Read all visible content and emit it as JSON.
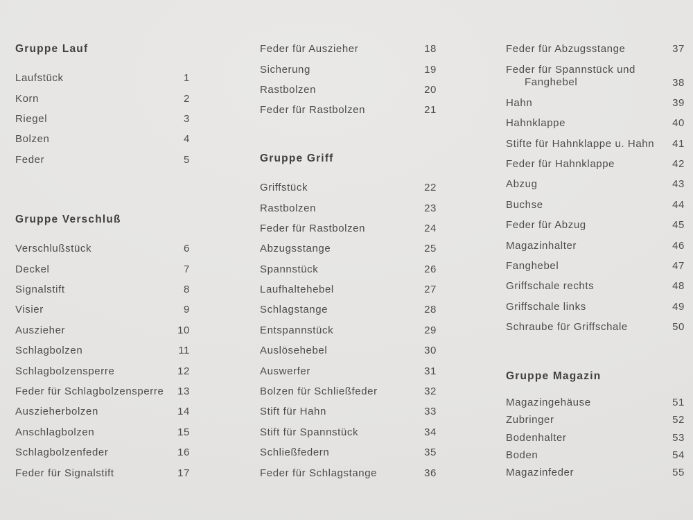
{
  "page": {
    "background_color": "#e5e4e2",
    "text_color": "#4d4c49",
    "heading_color": "#403f3c"
  },
  "columns": [
    {
      "blocks": [
        {
          "type": "heading",
          "text": "Gruppe Lauf"
        },
        {
          "type": "items",
          "items": [
            {
              "label": "Laufstück",
              "number": "1"
            },
            {
              "label": "Korn",
              "number": "2"
            },
            {
              "label": "Riegel",
              "number": "3"
            },
            {
              "label": "Bolzen",
              "number": "4"
            },
            {
              "label": "Feder",
              "number": "5"
            }
          ]
        },
        {
          "type": "heading",
          "text": "Gruppe Verschluß"
        },
        {
          "type": "items",
          "items": [
            {
              "label": "Verschlußstück",
              "number": "6"
            },
            {
              "label": "Deckel",
              "number": "7"
            },
            {
              "label": "Signalstift",
              "number": "8"
            },
            {
              "label": "Visier",
              "number": "9"
            },
            {
              "label": "Auszieher",
              "number": "10"
            },
            {
              "label": "Schlagbolzen",
              "number": "11"
            },
            {
              "label": "Schlagbolzensperre",
              "number": "12"
            },
            {
              "label": "Feder für Schlagbolzensperre",
              "number": "13"
            },
            {
              "label": "Auszieherbolzen",
              "number": "14"
            },
            {
              "label": "Anschlagbolzen",
              "number": "15"
            },
            {
              "label": "Schlagbolzenfeder",
              "number": "16"
            },
            {
              "label": "Feder für Signalstift",
              "number": "17"
            }
          ]
        }
      ]
    },
    {
      "blocks": [
        {
          "type": "items",
          "items": [
            {
              "label": "Feder für Auszieher",
              "number": "18"
            },
            {
              "label": "Sicherung",
              "number": "19"
            },
            {
              "label": "Rastbolzen",
              "number": "20"
            },
            {
              "label": "Feder für Rastbolzen",
              "number": "21"
            }
          ]
        },
        {
          "type": "heading",
          "text": "Gruppe Griff"
        },
        {
          "type": "items",
          "items": [
            {
              "label": "Griffstück",
              "number": "22"
            },
            {
              "label": "Rastbolzen",
              "number": "23"
            },
            {
              "label": "Feder für Rastbolzen",
              "number": "24"
            },
            {
              "label": "Abzugsstange",
              "number": "25"
            },
            {
              "label": "Spannstück",
              "number": "26"
            },
            {
              "label": "Laufhaltehebel",
              "number": "27"
            },
            {
              "label": "Schlagstange",
              "number": "28"
            },
            {
              "label": "Entspannstück",
              "number": "29"
            },
            {
              "label": "Auslösehebel",
              "number": "30"
            },
            {
              "label": "Auswerfer",
              "number": "31"
            },
            {
              "label": "Bolzen für Schließfeder",
              "number": "32"
            },
            {
              "label": "Stift für Hahn",
              "number": "33"
            },
            {
              "label": "Stift für Spannstück",
              "number": "34"
            },
            {
              "label": "Schließfedern",
              "number": "35"
            },
            {
              "label": "Feder für Schlagstange",
              "number": "36"
            }
          ]
        }
      ]
    },
    {
      "blocks": [
        {
          "type": "items",
          "items": [
            {
              "label": "Feder für Abzugsstange",
              "number": "37"
            },
            {
              "label": "Feder für Spannstück und",
              "label2": "Fanghebel",
              "number": "38"
            },
            {
              "label": "Hahn",
              "number": "39"
            },
            {
              "label": "Hahnklappe",
              "number": "40"
            },
            {
              "label": "Stifte für Hahnklappe u. Hahn",
              "number": "41"
            },
            {
              "label": "Feder für Hahnklappe",
              "number": "42"
            },
            {
              "label": "Abzug",
              "number": "43"
            },
            {
              "label": "Buchse",
              "number": "44"
            },
            {
              "label": "Feder für Abzug",
              "number": "45"
            },
            {
              "label": "Magazinhalter",
              "number": "46"
            },
            {
              "label": "Fanghebel",
              "number": "47"
            },
            {
              "label": "Griffschale rechts",
              "number": "48"
            },
            {
              "label": "Griffschale links",
              "number": "49"
            },
            {
              "label": "Schraube für Griffschale",
              "number": "50"
            }
          ]
        },
        {
          "type": "heading",
          "text": "Gruppe Magazin"
        },
        {
          "type": "items",
          "compact": true,
          "items": [
            {
              "label": "Magazingehäuse",
              "number": "51"
            },
            {
              "label": "Zubringer",
              "number": "52"
            },
            {
              "label": "Bodenhalter",
              "number": "53"
            },
            {
              "label": "Boden",
              "number": "54"
            },
            {
              "label": "Magazinfeder",
              "number": "55"
            }
          ]
        }
      ]
    }
  ]
}
